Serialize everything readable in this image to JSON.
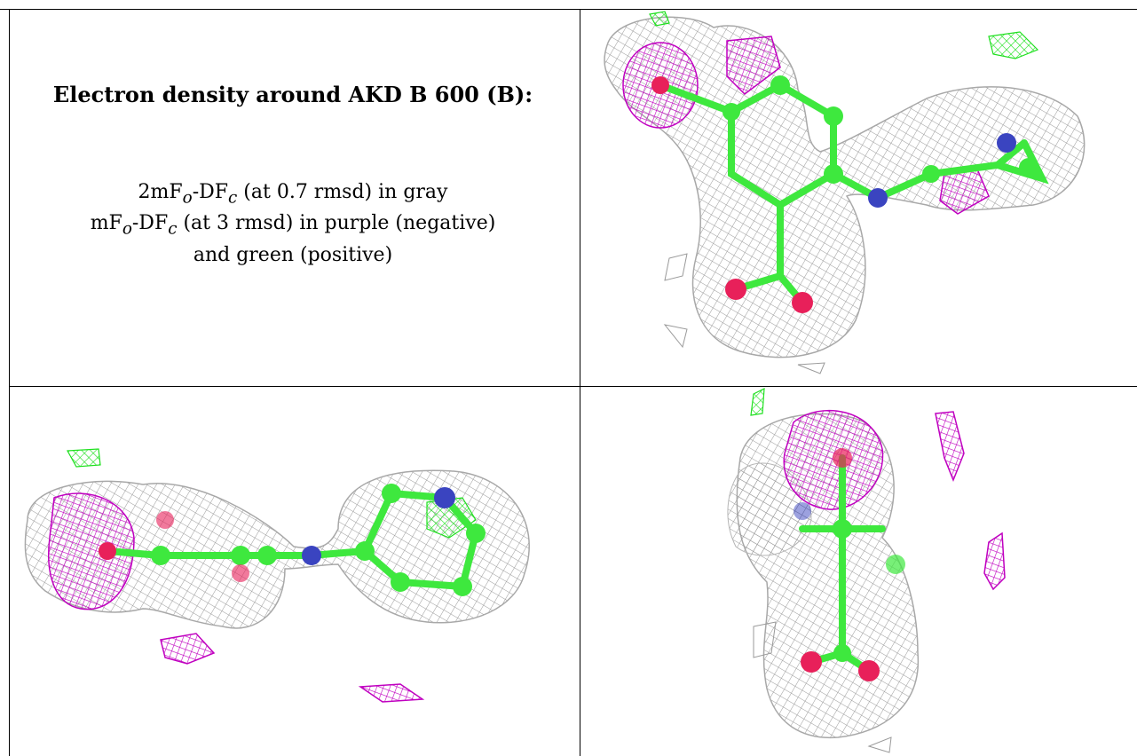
{
  "caption": {
    "title": "Electron density around AKD B 600 (B):",
    "line1": {
      "pre": "2mF",
      "sub1": "o",
      "mid": "-DF",
      "sub2": "c",
      "post": " (at 0.7 rmsd) in gray"
    },
    "line2": {
      "pre": "mF",
      "sub1": "o",
      "mid": "-DF",
      "sub2": "c",
      "post": " (at 3 rmsd) in purple (negative)"
    },
    "line3": "and green (positive)"
  },
  "colors": {
    "mesh_gray": "#9a9a9a",
    "mesh_purple": "#c000c0",
    "carbon_green": "#3ee83e",
    "nitrogen_blue": "#3a44c0",
    "oxygen_red": "#e8205a",
    "mesh_green": "#1ee01e"
  },
  "panels": [
    {
      "view": "top-right"
    },
    {
      "view": "bottom-left"
    },
    {
      "view": "bottom-right"
    }
  ]
}
